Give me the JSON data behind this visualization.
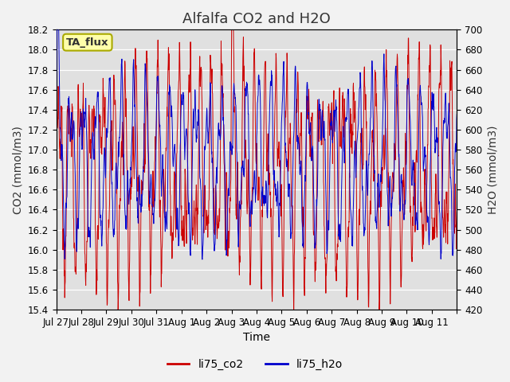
{
  "title": "Alfalfa CO2 and H2O",
  "xlabel": "Time",
  "ylabel_left": "CO2 (mmol/m3)",
  "ylabel_right": "H2O (mmol/m3)",
  "ylim_left": [
    15.4,
    18.2
  ],
  "ylim_right": [
    420,
    700
  ],
  "yticks_left": [
    15.4,
    15.6,
    15.8,
    16.0,
    16.2,
    16.4,
    16.6,
    16.8,
    17.0,
    17.2,
    17.4,
    17.6,
    17.8,
    18.0,
    18.2
  ],
  "yticks_right": [
    420,
    440,
    460,
    480,
    500,
    520,
    540,
    560,
    580,
    600,
    620,
    640,
    660,
    680,
    700
  ],
  "xtick_positions": [
    0,
    1,
    2,
    3,
    4,
    5,
    6,
    7,
    8,
    9,
    10,
    11,
    12,
    13,
    14,
    15,
    16
  ],
  "xtick_labels": [
    "Jul 27",
    "Jul 28",
    "Jul 29",
    "Jul 30",
    "Jul 31",
    "Aug 1",
    "Aug 2",
    "Aug 3",
    "Aug 4",
    "Aug 5",
    "Aug 6",
    "Aug 7",
    "Aug 8",
    "Aug 9",
    "Aug 10",
    "Aug 11",
    ""
  ],
  "color_co2": "#cc0000",
  "color_h2o": "#0000cc",
  "legend_label_co2": "li75_co2",
  "legend_label_h2o": "li75_h2o",
  "annotation_text": "TA_flux",
  "annotation_bg": "#ffffaa",
  "annotation_border": "#aaaa00",
  "bg_color": "#e0e0e0",
  "title_fontsize": 13,
  "axis_fontsize": 10,
  "tick_fontsize": 8.5,
  "legend_fontsize": 10,
  "n_days": 16,
  "n_pts": 1600,
  "co2_mean": 16.8,
  "h2o_mean": 570
}
